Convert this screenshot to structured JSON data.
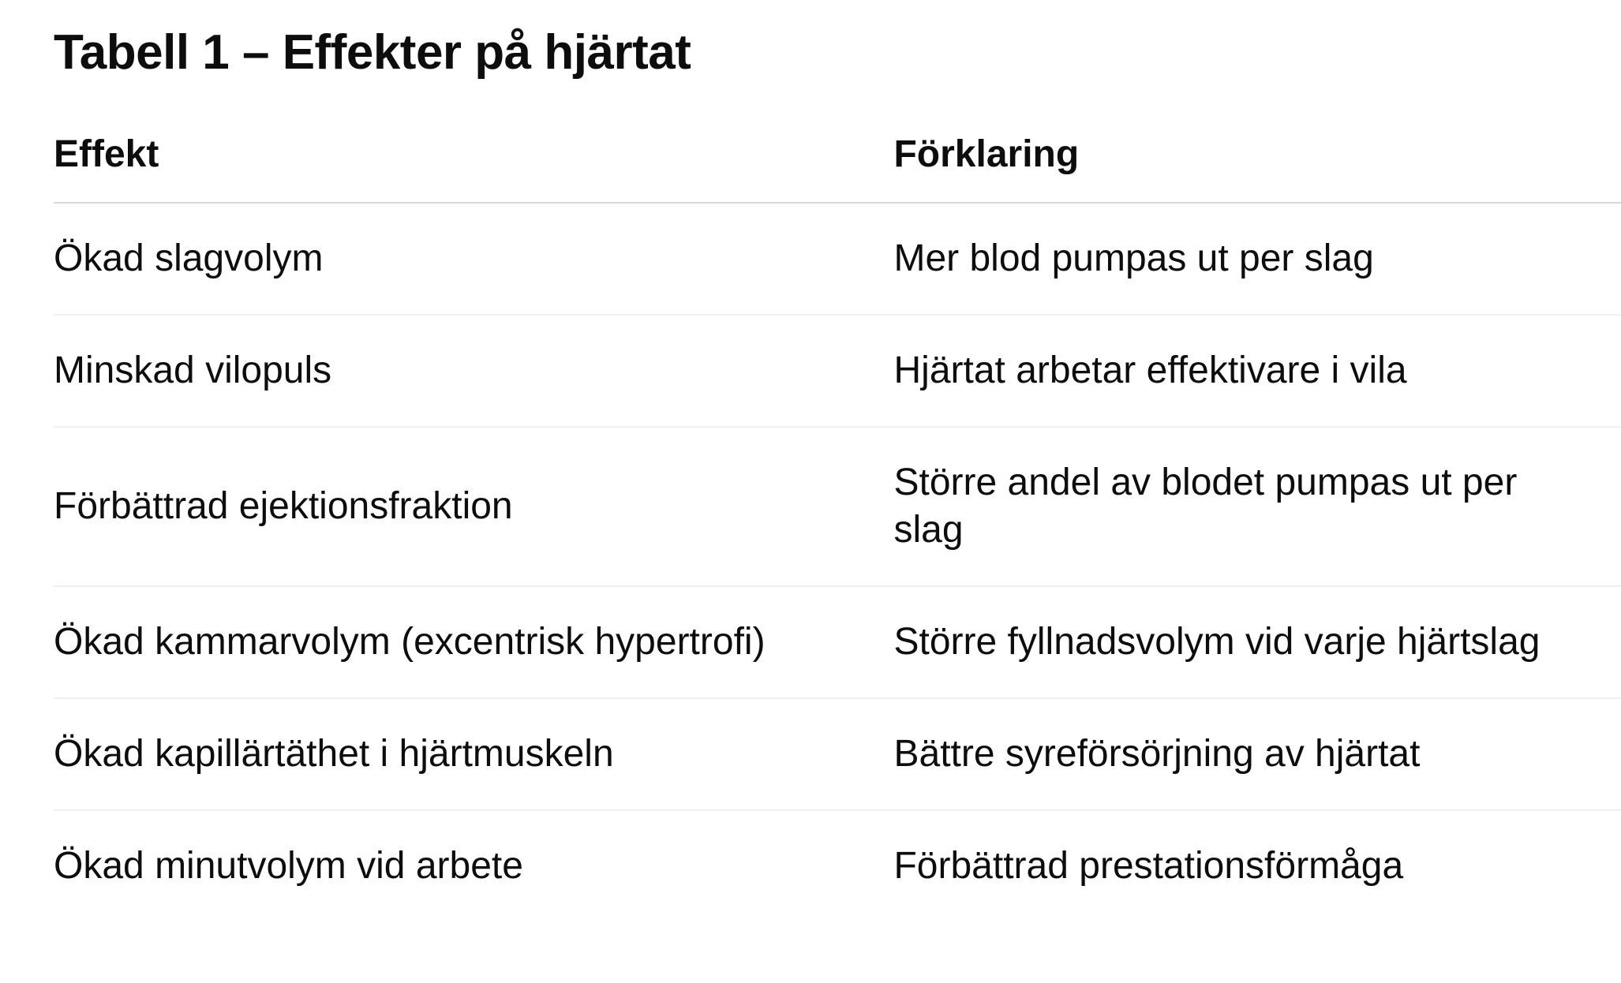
{
  "page": {
    "title": "Tabell 1 – Effekter på hjärtat"
  },
  "table": {
    "columns": [
      {
        "label": "Effekt"
      },
      {
        "label": "Förklaring"
      }
    ],
    "rows": [
      {
        "effekt": "Ökad slagvolym",
        "forklaring": "Mer blod pumpas ut per slag"
      },
      {
        "effekt": "Minskad vilopuls",
        "forklaring": "Hjärtat arbetar effektivare i vila"
      },
      {
        "effekt": "Förbättrad ejektionsfraktion",
        "forklaring": "Större andel av blodet pumpas ut per slag"
      },
      {
        "effekt": "Ökad kammarvolym (excentrisk hypertrofi)",
        "forklaring": "Större fyllnadsvolym vid varje hjärtslag"
      },
      {
        "effekt": "Ökad kapillärtäthet i hjärtmuskeln",
        "forklaring": "Bättre syreförsörjning av hjärtat"
      },
      {
        "effekt": "Ökad minutvolym vid arbete",
        "forklaring": "Förbättrad prestationsförmåga"
      }
    ]
  },
  "colors": {
    "text": "#0d0d0d",
    "header_divider": "#d9d9d9",
    "row_divider": "#efefef",
    "background": "#ffffff"
  }
}
